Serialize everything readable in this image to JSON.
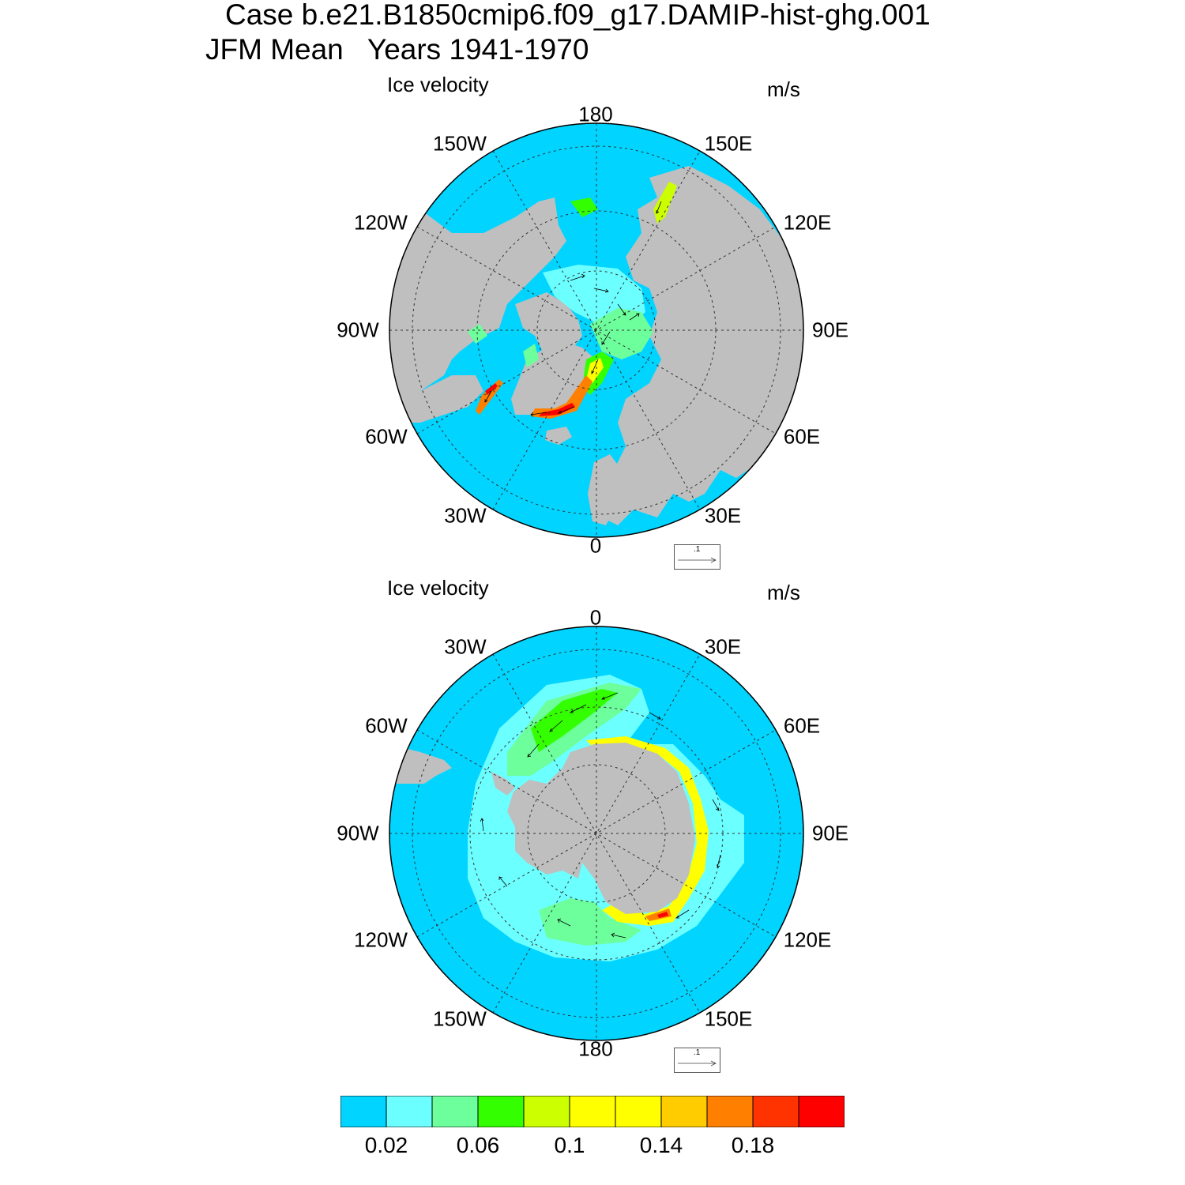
{
  "title": {
    "line1": "Case b.e21.B1850cmip6.f09_g17.DAMIP-hist-ghg.001",
    "line2": "JFM Mean   Years 1941-1970"
  },
  "maps": [
    {
      "name": "northern-hemisphere",
      "variable": "Ice velocity",
      "units": "m/s",
      "labels": {
        "top": "180",
        "bottom": "0",
        "left": "90W",
        "right": "90E",
        "upper_left_1": "150W",
        "upper_left_2": "120W",
        "upper_right_1": "150E",
        "upper_right_2": "120E",
        "lower_left_1": "60W",
        "lower_left_2": "30W",
        "lower_right_1": "60E",
        "lower_right_2": "30E"
      },
      "reference_vector": ".1"
    },
    {
      "name": "southern-hemisphere",
      "variable": "Ice velocity",
      "units": "m/s",
      "labels": {
        "top": "0",
        "bottom": "180",
        "left": "90W",
        "right": "90E",
        "upper_left_1": "30W",
        "upper_left_2": "60W",
        "upper_right_1": "30E",
        "upper_right_2": "60E",
        "lower_left_1": "120W",
        "lower_left_2": "150W",
        "lower_right_1": "120E",
        "lower_right_2": "150E"
      },
      "reference_vector": ".1"
    }
  ],
  "colors": {
    "ocean": "#00d4ff",
    "land": "#bfbfbf",
    "levels": [
      "#00d4ff",
      "#6cffff",
      "#6cff9c",
      "#33ff00",
      "#ccff00",
      "#ffff00",
      "#ffff00",
      "#ffcc00",
      "#ff8000",
      "#ff3300",
      "#ff0000"
    ]
  },
  "colorbar": {
    "tick_labels": [
      "0.02",
      "0.06",
      "0.1",
      "0.14",
      "0.18"
    ]
  }
}
